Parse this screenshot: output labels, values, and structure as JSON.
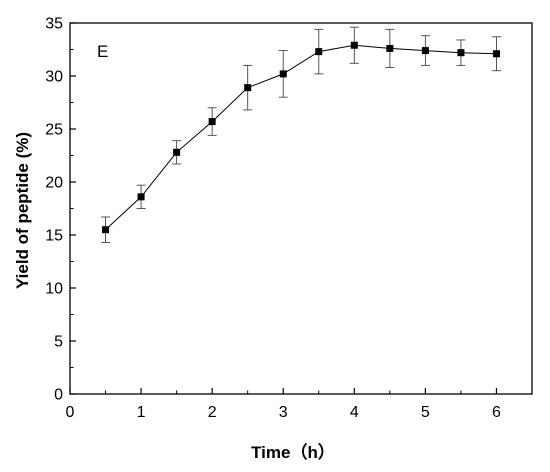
{
  "chart_data": {
    "type": "line",
    "title": "",
    "panel_label": "E",
    "xlabel": "Time（h）",
    "ylabel": "Yield of peptide (%)",
    "xlim": [
      0,
      6.5
    ],
    "ylim": [
      0,
      35
    ],
    "x_ticks": [
      0,
      1,
      2,
      3,
      4,
      5,
      6
    ],
    "y_ticks": [
      0,
      5,
      10,
      15,
      20,
      25,
      30,
      35
    ],
    "grid": false,
    "legend": "none",
    "marker": "square",
    "color": "#000000",
    "series": [
      {
        "x": [
          0.5,
          1.0,
          1.5,
          2.0,
          2.5,
          3.0,
          3.5,
          4.0,
          4.5,
          5.0,
          5.5,
          6.0
        ],
        "y": [
          15.5,
          18.6,
          22.8,
          25.7,
          28.9,
          30.2,
          32.3,
          32.9,
          32.6,
          32.4,
          32.2,
          32.1
        ],
        "error": [
          1.2,
          1.1,
          1.1,
          1.3,
          2.1,
          2.2,
          2.1,
          1.7,
          1.8,
          1.4,
          1.2,
          1.6
        ]
      }
    ]
  }
}
